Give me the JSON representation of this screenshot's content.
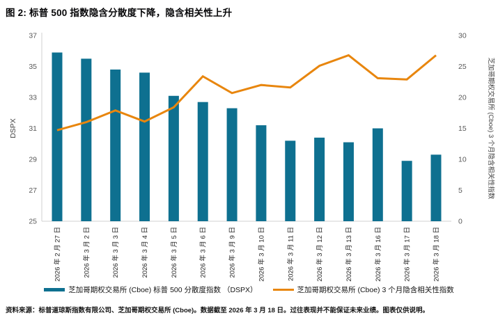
{
  "figure": {
    "title": "图 2: 标普 500 指数隐含分散度下降，隐含相关性上升"
  },
  "colors": {
    "bar": "#0e7090",
    "line": "#e8860e",
    "axis_line": "#d2d2d2",
    "tick_label": "#595959",
    "date_label": "#262626",
    "axis_title": "#404040"
  },
  "chart_data": {
    "type": "bar+line (dual axis)",
    "categories": [
      "2026 年 2 月 27 日",
      "2026 年 3 月 2 日",
      "2026 年 3 月 3 日",
      "2026 年 3 月 4 日",
      "2026 年 3 月 5 日",
      "2026 年 3 月 6 日",
      "2026 年 3 月 9 日",
      "2026 年 3 月 10 日",
      "2026 年 3 月 11 日",
      "2026 年 3 月 12 日",
      "2026 年 3 月 13 日",
      "2026 年 3 月 16 日",
      "2026 年 3 月 17 日",
      "2026 年 3 月 18 日"
    ],
    "series": [
      {
        "name": "芝加哥期权交易所 (Cboe) 标普 500 分散度指数 （DSPX）",
        "type": "bar",
        "axis": "left",
        "values": [
          35.9,
          35.5,
          34.8,
          34.6,
          33.1,
          32.7,
          32.3,
          31.2,
          30.2,
          30.4,
          30.1,
          31.0,
          28.9,
          29.3
        ]
      },
      {
        "name": "芝加哥期权交易所 (Cboe) 3 个月隐含相关性指数",
        "type": "line",
        "axis": "right",
        "values": [
          14.7,
          16.0,
          17.9,
          16.1,
          18.4,
          23.4,
          20.7,
          22.0,
          21.6,
          25.1,
          26.8,
          23.1,
          22.9,
          26.8
        ]
      }
    ],
    "left_axis": {
      "label": "DSPX",
      "min": 25,
      "max": 37,
      "ticks": [
        37,
        35,
        33,
        31,
        29,
        27,
        25
      ]
    },
    "right_axis": {
      "label": "芝加哥期权交易所 (Cboe) 3 个月隐含相关性指数",
      "min": 0,
      "max": 30,
      "ticks": [
        30,
        25,
        20,
        15,
        10,
        5,
        0
      ]
    },
    "grid": false,
    "legend_position": "bottom"
  },
  "legend": {
    "bars": "芝加哥期权交易所 (Cboe) 标普 500 分散度指数 （DSPX）",
    "line": "芝加哥期权交易所 (Cboe) 3 个月隐含相关性指数"
  },
  "footer": {
    "source": "资料来源：标普道琼斯指数有限公司、芝加哥期权交易所 (Cboe)。数据截至 2026 年 3 月 18 日。过往表现并不能保证未来业绩。图表仅供说明。"
  }
}
